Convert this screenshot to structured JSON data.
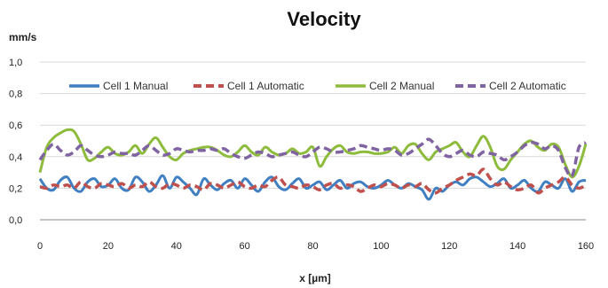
{
  "chart_data": {
    "type": "line",
    "title": "Velocity",
    "ylabel": "mm/s",
    "xlabel": "x [µm]",
    "xlim": [
      0,
      160
    ],
    "ylim": [
      0,
      1.0
    ],
    "xticks": [
      0,
      20,
      40,
      60,
      80,
      100,
      120,
      140,
      160
    ],
    "xtick_labels": [
      "0",
      "20",
      "40",
      "60",
      "80",
      "100",
      "120",
      "140",
      "160"
    ],
    "yticks": [
      0,
      0.2,
      0.4,
      0.6,
      0.8,
      1.0
    ],
    "ytick_labels": [
      "0,0",
      "0,2",
      "0,4",
      "0,6",
      "0,8",
      "1,0"
    ],
    "grid": "horizontal",
    "legend_position": "top",
    "series": [
      {
        "name": "Cell 1 Manual",
        "color": "#3f7fc2",
        "dash": "solid",
        "x": [
          0,
          2,
          4,
          6,
          8,
          10,
          12,
          14,
          16,
          18,
          20,
          22,
          24,
          26,
          28,
          30,
          32,
          34,
          36,
          38,
          40,
          42,
          44,
          46,
          48,
          50,
          52,
          54,
          56,
          58,
          60,
          62,
          64,
          66,
          68,
          70,
          72,
          74,
          76,
          78,
          80,
          82,
          84,
          86,
          88,
          90,
          92,
          94,
          96,
          98,
          100,
          102,
          104,
          106,
          108,
          110,
          112,
          114,
          116,
          118,
          120,
          122,
          124,
          126,
          128,
          130,
          132,
          134,
          136,
          138,
          140,
          142,
          144,
          146,
          148,
          150,
          152,
          154,
          156,
          158,
          160
        ],
        "y": [
          0.26,
          0.2,
          0.19,
          0.25,
          0.27,
          0.2,
          0.18,
          0.24,
          0.26,
          0.21,
          0.22,
          0.26,
          0.2,
          0.19,
          0.27,
          0.24,
          0.18,
          0.22,
          0.28,
          0.2,
          0.27,
          0.24,
          0.2,
          0.16,
          0.26,
          0.22,
          0.19,
          0.23,
          0.25,
          0.2,
          0.26,
          0.22,
          0.18,
          0.24,
          0.27,
          0.21,
          0.19,
          0.23,
          0.26,
          0.2,
          0.22,
          0.24,
          0.19,
          0.22,
          0.25,
          0.2,
          0.23,
          0.24,
          0.21,
          0.2,
          0.22,
          0.25,
          0.22,
          0.2,
          0.23,
          0.21,
          0.19,
          0.13,
          0.2,
          0.18,
          0.22,
          0.24,
          0.22,
          0.26,
          0.27,
          0.24,
          0.21,
          0.23,
          0.26,
          0.2,
          0.22,
          0.25,
          0.2,
          0.18,
          0.24,
          0.22,
          0.2,
          0.26,
          0.18,
          0.24,
          0.25
        ]
      },
      {
        "name": "Cell 1 Automatic",
        "color": "#c0504d",
        "dash": "dashed",
        "x": [
          0,
          2,
          4,
          6,
          8,
          10,
          12,
          14,
          16,
          18,
          20,
          22,
          24,
          26,
          28,
          30,
          32,
          34,
          36,
          38,
          40,
          42,
          44,
          46,
          48,
          50,
          52,
          54,
          56,
          58,
          60,
          62,
          64,
          66,
          68,
          70,
          72,
          74,
          76,
          78,
          80,
          82,
          84,
          86,
          88,
          90,
          92,
          94,
          96,
          98,
          100,
          102,
          104,
          106,
          108,
          110,
          112,
          114,
          116,
          118,
          120,
          122,
          124,
          126,
          128,
          130,
          132,
          134,
          136,
          138,
          140,
          142,
          144,
          146,
          148,
          150,
          152,
          154,
          156,
          158,
          160
        ],
        "y": [
          0.21,
          0.2,
          0.22,
          0.21,
          0.22,
          0.2,
          0.24,
          0.21,
          0.2,
          0.23,
          0.22,
          0.21,
          0.23,
          0.2,
          0.22,
          0.21,
          0.24,
          0.21,
          0.2,
          0.23,
          0.22,
          0.2,
          0.22,
          0.21,
          0.19,
          0.23,
          0.22,
          0.2,
          0.22,
          0.24,
          0.21,
          0.2,
          0.22,
          0.21,
          0.25,
          0.27,
          0.22,
          0.21,
          0.2,
          0.22,
          0.21,
          0.19,
          0.22,
          0.23,
          0.2,
          0.22,
          0.21,
          0.18,
          0.2,
          0.22,
          0.21,
          0.23,
          0.22,
          0.2,
          0.22,
          0.21,
          0.23,
          0.19,
          0.17,
          0.2,
          0.22,
          0.25,
          0.27,
          0.29,
          0.28,
          0.32,
          0.26,
          0.22,
          0.24,
          0.21,
          0.19,
          0.2,
          0.22,
          0.17,
          0.2,
          0.22,
          0.24,
          0.27,
          0.22,
          0.2,
          0.22
        ]
      },
      {
        "name": "Cell 2 Manual",
        "color": "#8dbb3c",
        "dash": "solid",
        "x": [
          0,
          2,
          4,
          6,
          8,
          10,
          12,
          14,
          16,
          18,
          20,
          22,
          24,
          26,
          28,
          30,
          32,
          34,
          36,
          38,
          40,
          42,
          44,
          46,
          48,
          50,
          52,
          54,
          56,
          58,
          60,
          62,
          64,
          66,
          68,
          70,
          72,
          74,
          76,
          78,
          80,
          82,
          84,
          86,
          88,
          90,
          92,
          94,
          96,
          98,
          100,
          102,
          104,
          106,
          108,
          110,
          112,
          114,
          116,
          118,
          120,
          122,
          124,
          126,
          128,
          130,
          132,
          134,
          136,
          138,
          140,
          142,
          144,
          146,
          148,
          150,
          152,
          154,
          156,
          158,
          160
        ],
        "y": [
          0.3,
          0.46,
          0.52,
          0.55,
          0.57,
          0.56,
          0.48,
          0.38,
          0.39,
          0.43,
          0.46,
          0.42,
          0.41,
          0.43,
          0.47,
          0.42,
          0.48,
          0.52,
          0.46,
          0.4,
          0.38,
          0.42,
          0.44,
          0.45,
          0.46,
          0.46,
          0.44,
          0.41,
          0.4,
          0.43,
          0.47,
          0.43,
          0.41,
          0.46,
          0.43,
          0.41,
          0.42,
          0.45,
          0.42,
          0.43,
          0.46,
          0.34,
          0.4,
          0.45,
          0.47,
          0.43,
          0.42,
          0.43,
          0.43,
          0.42,
          0.42,
          0.43,
          0.46,
          0.42,
          0.47,
          0.48,
          0.42,
          0.38,
          0.43,
          0.45,
          0.47,
          0.49,
          0.43,
          0.4,
          0.47,
          0.53,
          0.46,
          0.34,
          0.32,
          0.38,
          0.43,
          0.48,
          0.5,
          0.46,
          0.44,
          0.48,
          0.46,
          0.35,
          0.27,
          0.34,
          0.48
        ]
      },
      {
        "name": "Cell 2 Automatic",
        "color": "#8064a2",
        "dash": "dashed",
        "x": [
          0,
          2,
          4,
          6,
          8,
          10,
          12,
          14,
          16,
          18,
          20,
          22,
          24,
          26,
          28,
          30,
          32,
          34,
          36,
          38,
          40,
          42,
          44,
          46,
          48,
          50,
          52,
          54,
          56,
          58,
          60,
          62,
          64,
          66,
          68,
          70,
          72,
          74,
          76,
          78,
          80,
          82,
          84,
          86,
          88,
          90,
          92,
          94,
          96,
          98,
          100,
          102,
          104,
          106,
          108,
          110,
          112,
          114,
          116,
          118,
          120,
          122,
          124,
          126,
          128,
          130,
          132,
          134,
          136,
          138,
          140,
          142,
          144,
          146,
          148,
          150,
          152,
          154,
          156,
          158,
          160
        ],
        "y": [
          0.38,
          0.44,
          0.48,
          0.44,
          0.41,
          0.43,
          0.47,
          0.44,
          0.41,
          0.4,
          0.41,
          0.43,
          0.42,
          0.42,
          0.41,
          0.44,
          0.47,
          0.44,
          0.41,
          0.42,
          0.45,
          0.44,
          0.43,
          0.44,
          0.44,
          0.45,
          0.44,
          0.45,
          0.42,
          0.4,
          0.39,
          0.41,
          0.43,
          0.42,
          0.4,
          0.41,
          0.42,
          0.43,
          0.41,
          0.4,
          0.43,
          0.46,
          0.45,
          0.43,
          0.43,
          0.44,
          0.45,
          0.47,
          0.46,
          0.45,
          0.44,
          0.45,
          0.44,
          0.41,
          0.42,
          0.45,
          0.48,
          0.51,
          0.47,
          0.42,
          0.4,
          0.42,
          0.44,
          0.41,
          0.4,
          0.43,
          0.42,
          0.41,
          0.38,
          0.4,
          0.43,
          0.47,
          0.49,
          0.48,
          0.45,
          0.47,
          0.44,
          0.33,
          0.28,
          0.46,
          0.49
        ]
      }
    ]
  }
}
